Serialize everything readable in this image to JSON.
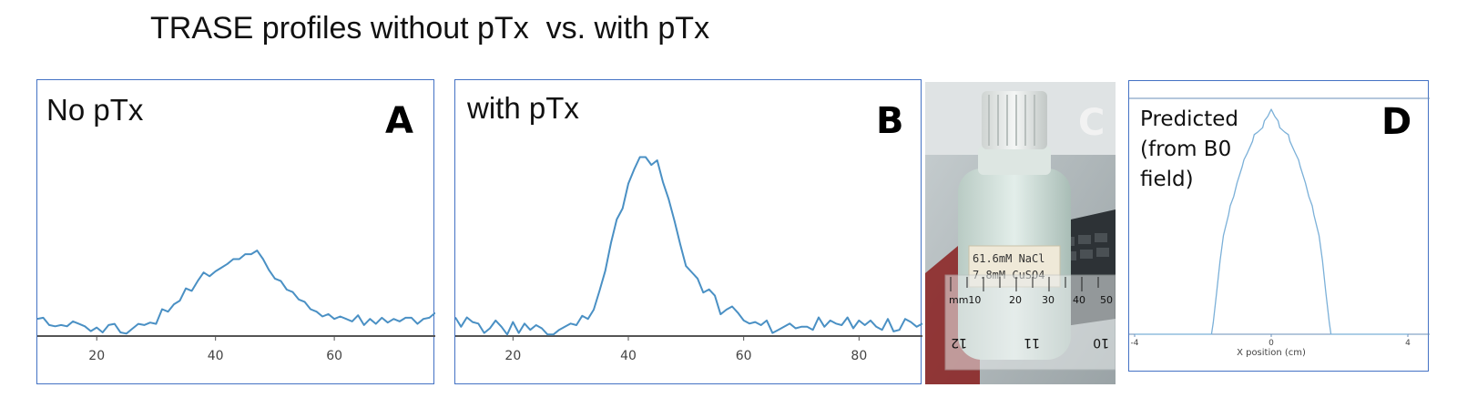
{
  "title": "TRASE profiles without pTx  vs. with pTx",
  "colors": {
    "line": "#4a90c4",
    "frame": "#4472c4",
    "axis": "#555555",
    "predicted_line": "#7bb0d8"
  },
  "panels": {
    "A": {
      "letter": "A",
      "label": "No pTx"
    },
    "B": {
      "letter": "B",
      "label": "with pTx"
    },
    "C": {
      "letter": "C",
      "bottle_label_line1": "61.6mM NaCl",
      "bottle_label_line2": "7.8mM CuSO4",
      "ruler_label": "mm10",
      "ruler_ticks": [
        "20",
        "30",
        "40",
        "50"
      ],
      "ruler_bottom": [
        "12",
        "11",
        "10"
      ]
    },
    "D": {
      "letter": "D",
      "label_lines": [
        "Predicted",
        "(from B0",
        "field)"
      ]
    }
  },
  "chart_data": [
    {
      "id": "A",
      "type": "line",
      "title": "",
      "xlabel": "",
      "ylabel": "",
      "xlim": [
        10,
        77
      ],
      "ylim": [
        0,
        120
      ],
      "xticks": [
        20,
        40,
        60
      ],
      "grid": false,
      "series": [
        {
          "x": [
            10,
            11,
            12,
            13,
            14,
            15,
            16,
            17,
            18,
            19,
            20,
            21,
            22,
            23,
            24,
            25,
            26,
            27,
            28,
            29,
            30,
            31,
            32,
            33,
            34,
            35,
            36,
            37,
            38,
            39,
            40,
            41,
            42,
            43,
            44,
            45,
            46,
            47,
            48,
            49,
            50,
            51,
            52,
            53,
            54,
            55,
            56,
            57,
            58,
            59,
            60,
            61,
            62,
            63,
            64,
            65,
            66,
            67,
            68,
            69,
            70,
            71,
            72,
            73,
            74,
            75,
            76,
            77
          ],
          "y": [
            14,
            15,
            9,
            8,
            9,
            8,
            12,
            10,
            8,
            4,
            7,
            3,
            9,
            10,
            3,
            2,
            6,
            10,
            9,
            11,
            10,
            22,
            20,
            26,
            29,
            39,
            37,
            45,
            52,
            49,
            53,
            56,
            59,
            63,
            63,
            67,
            67,
            70,
            63,
            54,
            47,
            45,
            38,
            36,
            30,
            28,
            22,
            20,
            16,
            18,
            14,
            16,
            14,
            12,
            17,
            9,
            14,
            10,
            15,
            11,
            14,
            12,
            15,
            15,
            10,
            14,
            15,
            19
          ]
        }
      ]
    },
    {
      "id": "B",
      "type": "line",
      "title": "",
      "xlabel": "",
      "ylabel": "",
      "xlim": [
        10,
        91
      ],
      "ylim": [
        0,
        120
      ],
      "xticks": [
        20,
        40,
        60,
        80
      ],
      "grid": false,
      "series": [
        {
          "x": [
            10,
            11,
            12,
            13,
            14,
            15,
            16,
            17,
            18,
            19,
            20,
            21,
            22,
            23,
            24,
            25,
            26,
            27,
            28,
            29,
            30,
            31,
            32,
            33,
            34,
            35,
            36,
            37,
            38,
            39,
            40,
            41,
            42,
            43,
            44,
            45,
            46,
            47,
            48,
            49,
            50,
            51,
            52,
            53,
            54,
            55,
            56,
            57,
            58,
            59,
            60,
            61,
            62,
            63,
            64,
            65,
            66,
            67,
            68,
            69,
            70,
            71,
            72,
            73,
            74,
            75,
            76,
            77,
            78,
            79,
            80,
            81,
            82,
            83,
            84,
            85,
            86,
            87,
            88,
            89,
            90,
            91
          ],
          "y": [
            12,
            6,
            12,
            9,
            8,
            2,
            5,
            10,
            6,
            1,
            9,
            2,
            8,
            4,
            7,
            5,
            1,
            1,
            4,
            6,
            8,
            7,
            13,
            11,
            17,
            29,
            42,
            60,
            75,
            82,
            98,
            107,
            115,
            115,
            110,
            113,
            99,
            88,
            74,
            59,
            45,
            41,
            37,
            28,
            30,
            26,
            14,
            17,
            19,
            15,
            10,
            8,
            9,
            7,
            10,
            2,
            4,
            6,
            8,
            5,
            6,
            6,
            4,
            12,
            6,
            10,
            8,
            7,
            12,
            5,
            10,
            7,
            10,
            6,
            4,
            11,
            3,
            4,
            11,
            9,
            6,
            8
          ]
        }
      ]
    },
    {
      "id": "D",
      "type": "line",
      "title": "",
      "xlabel": "X position (cm)",
      "ylabel": "",
      "xlim": [
        -4,
        4
      ],
      "ylim": [
        0,
        1
      ],
      "xticks": [
        -4,
        0,
        4
      ],
      "grid": false,
      "series": [
        {
          "x": [
            -4,
            -1.75,
            -1.7,
            -1.6,
            -1.5,
            -1.4,
            -1.25,
            -1.2,
            -1.1,
            -1.0,
            -0.85,
            -0.8,
            -0.7,
            -0.55,
            -0.5,
            -0.4,
            -0.25,
            -0.2,
            -0.1,
            0,
            0.1,
            0.2,
            0.25,
            0.4,
            0.5,
            0.55,
            0.7,
            0.8,
            0.85,
            1.0,
            1.1,
            1.2,
            1.25,
            1.4,
            1.5,
            1.6,
            1.7,
            1.75,
            4
          ],
          "y": [
            0,
            0,
            0.05,
            0.18,
            0.32,
            0.43,
            0.52,
            0.56,
            0.6,
            0.66,
            0.73,
            0.76,
            0.79,
            0.84,
            0.87,
            0.88,
            0.9,
            0.93,
            0.95,
            0.98,
            0.95,
            0.93,
            0.9,
            0.88,
            0.87,
            0.84,
            0.79,
            0.76,
            0.73,
            0.66,
            0.6,
            0.56,
            0.52,
            0.43,
            0.32,
            0.18,
            0.05,
            0,
            0
          ]
        }
      ]
    }
  ]
}
